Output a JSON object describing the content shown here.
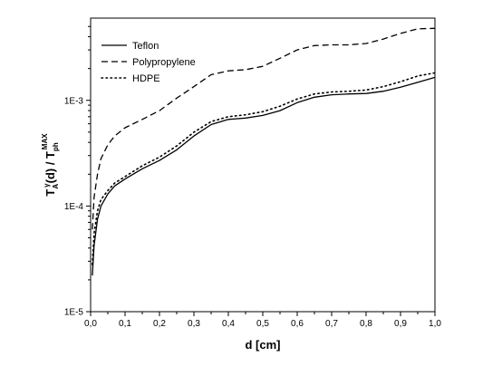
{
  "chart_data": {
    "type": "line",
    "title": "",
    "xlabel": "d [cm]",
    "ylabel": {
      "main": "T",
      "sub1": "A",
      "sup1": "γ",
      "mid": "(d) / T",
      "sub2": "ph",
      "sup2": "MAX"
    },
    "xlim": [
      0,
      1.0
    ],
    "ylim": [
      1e-05,
      0.006
    ],
    "yscale": "log",
    "grid": false,
    "legend_position": "top-left",
    "x_ticks": [
      {
        "value": 0.0,
        "label": "0,0"
      },
      {
        "value": 0.1,
        "label": "0,1"
      },
      {
        "value": 0.2,
        "label": "0,2"
      },
      {
        "value": 0.3,
        "label": "0,3"
      },
      {
        "value": 0.4,
        "label": "0,4"
      },
      {
        "value": 0.5,
        "label": "0,5"
      },
      {
        "value": 0.6,
        "label": "0,6"
      },
      {
        "value": 0.7,
        "label": "0,7"
      },
      {
        "value": 0.8,
        "label": "0,8"
      },
      {
        "value": 0.9,
        "label": "0,9"
      },
      {
        "value": 1.0,
        "label": "1,0"
      }
    ],
    "y_ticks": [
      {
        "value": 1e-05,
        "label": "1E-5"
      },
      {
        "value": 0.0001,
        "label": "1E-4"
      },
      {
        "value": 0.001,
        "label": "1E-3"
      }
    ],
    "series": [
      {
        "name": "Teflon",
        "dash": "solid",
        "x": [
          0.005,
          0.01,
          0.02,
          0.03,
          0.05,
          0.07,
          0.1,
          0.15,
          0.2,
          0.25,
          0.3,
          0.35,
          0.4,
          0.45,
          0.5,
          0.55,
          0.6,
          0.65,
          0.7,
          0.75,
          0.8,
          0.85,
          0.9,
          0.95,
          1.0
        ],
        "y": [
          2.2e-05,
          4.2e-05,
          7.5e-05,
          0.0001,
          0.00013,
          0.000155,
          0.00018,
          0.000225,
          0.00027,
          0.00034,
          0.00046,
          0.00059,
          0.00066,
          0.00068,
          0.00072,
          0.0008,
          0.00095,
          0.00107,
          0.00113,
          0.00115,
          0.00116,
          0.00122,
          0.00133,
          0.00148,
          0.00165
        ]
      },
      {
        "name": "Polypropylene",
        "dash": "dashed",
        "x": [
          0.005,
          0.01,
          0.02,
          0.03,
          0.05,
          0.07,
          0.1,
          0.15,
          0.2,
          0.25,
          0.3,
          0.35,
          0.4,
          0.45,
          0.5,
          0.55,
          0.6,
          0.65,
          0.7,
          0.75,
          0.8,
          0.85,
          0.9,
          0.95,
          1.0
        ],
        "y": [
          6e-05,
          0.00012,
          0.0002,
          0.00028,
          0.00038,
          0.00046,
          0.00055,
          0.00066,
          0.0008,
          0.00105,
          0.00135,
          0.00175,
          0.0019,
          0.00195,
          0.0021,
          0.0025,
          0.003,
          0.0033,
          0.00335,
          0.00335,
          0.00345,
          0.0038,
          0.0043,
          0.00475,
          0.0048
        ]
      },
      {
        "name": "HDPE",
        "dash": "dotted",
        "x": [
          0.005,
          0.01,
          0.02,
          0.03,
          0.05,
          0.07,
          0.1,
          0.15,
          0.2,
          0.25,
          0.3,
          0.35,
          0.4,
          0.45,
          0.5,
          0.55,
          0.6,
          0.65,
          0.7,
          0.75,
          0.8,
          0.85,
          0.9,
          0.95,
          1.0
        ],
        "y": [
          2.8e-05,
          5.5e-05,
          9e-05,
          0.000115,
          0.00014,
          0.000165,
          0.00019,
          0.00024,
          0.00029,
          0.00037,
          0.0005,
          0.00063,
          0.0007,
          0.00073,
          0.00078,
          0.00088,
          0.00103,
          0.00115,
          0.0012,
          0.00122,
          0.00125,
          0.00135,
          0.0015,
          0.0017,
          0.00182
        ]
      }
    ]
  }
}
